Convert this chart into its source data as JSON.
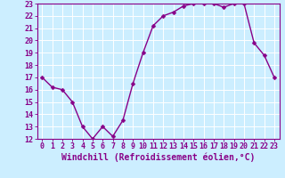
{
  "x": [
    0,
    1,
    2,
    3,
    4,
    5,
    6,
    7,
    8,
    9,
    10,
    11,
    12,
    13,
    14,
    15,
    16,
    17,
    18,
    19,
    20,
    21,
    22,
    23
  ],
  "y": [
    17,
    16.2,
    16,
    15,
    13,
    12,
    13,
    12.2,
    13.5,
    16.5,
    19,
    21.2,
    22,
    22.3,
    22.8,
    23,
    23,
    23,
    22.7,
    23,
    23,
    19.8,
    18.8,
    17
  ],
  "line_color": "#880088",
  "marker_color": "#880088",
  "bg_color": "#cceeff",
  "grid_color": "#ffffff",
  "xlabel": "Windchill (Refroidissement éolien,°C)",
  "xlim": [
    -0.5,
    23.5
  ],
  "ylim": [
    12,
    23
  ],
  "yticks": [
    12,
    13,
    14,
    15,
    16,
    17,
    18,
    19,
    20,
    21,
    22,
    23
  ],
  "xticks": [
    0,
    1,
    2,
    3,
    4,
    5,
    6,
    7,
    8,
    9,
    10,
    11,
    12,
    13,
    14,
    15,
    16,
    17,
    18,
    19,
    20,
    21,
    22,
    23
  ],
  "tick_label_color": "#880088",
  "font_size_xlabel": 7.0,
  "font_size_ticks": 6.0,
  "line_width": 1.0,
  "marker_size": 2.5
}
